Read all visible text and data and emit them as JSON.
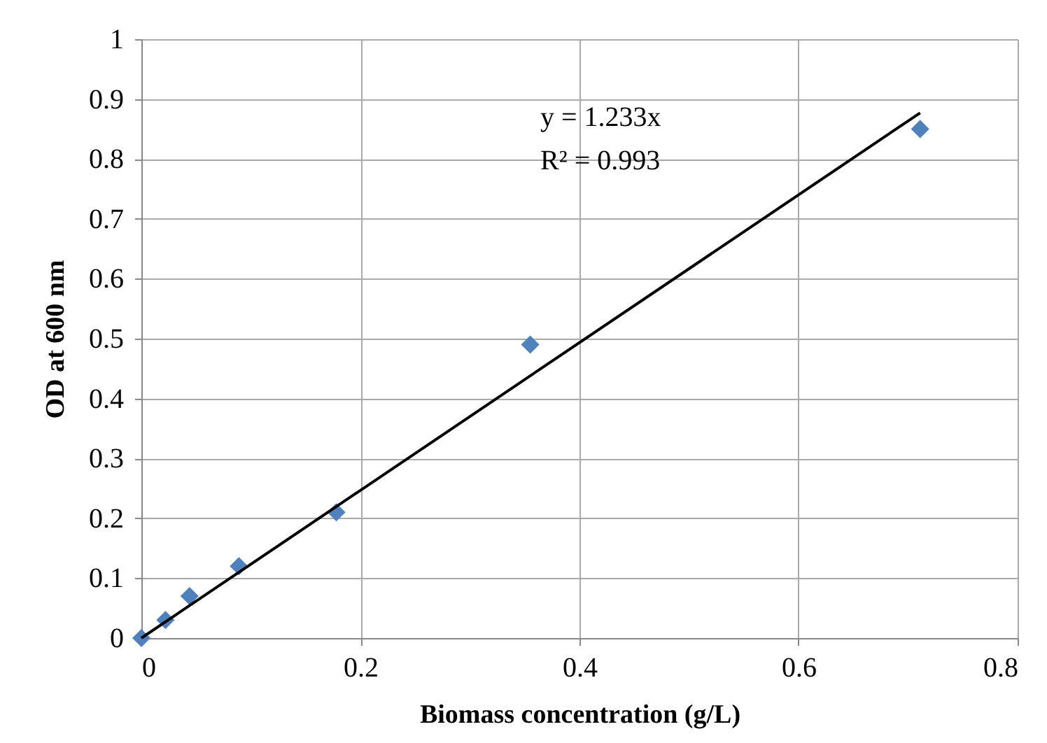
{
  "chart_data": {
    "type": "scatter",
    "xlabel": "Biomass concentration (g/L)",
    "ylabel": "OD  at 600 nm",
    "x": [
      0,
      0.022,
      0.044,
      0.089,
      0.178,
      0.355,
      0.711
    ],
    "series": [
      {
        "color": "#4f81bd",
        "marker": "diamond",
        "values": [
          0,
          0.03,
          0.07,
          0.12,
          0.21,
          0.49,
          0.85
        ]
      },
      {
        "type": "line",
        "color": "#000000",
        "x": [
          0,
          0.711
        ],
        "values": [
          0,
          0.877
        ]
      }
    ],
    "annotations": [
      "y = 1.233x",
      "R² = 0.993"
    ],
    "xlim": [
      0,
      0.8
    ],
    "xticks": [
      0,
      0.2,
      0.4,
      0.6,
      0.8
    ],
    "ylim": [
      0,
      1
    ],
    "yticks": [
      0,
      0.1,
      0.2,
      0.3,
      0.4,
      0.5,
      0.6,
      0.7,
      0.8,
      0.9,
      1
    ],
    "grid": true
  }
}
